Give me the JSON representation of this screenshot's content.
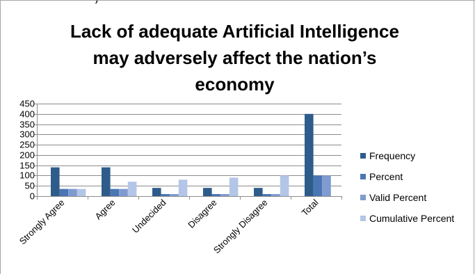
{
  "page": {
    "top_fragment": "y"
  },
  "colors": {
    "axis": "#8c8c8c",
    "gridline": "#8c8c8c",
    "border": "#a6a6a6"
  },
  "chart_data": {
    "type": "bar",
    "title_lines": [
      "Lack of adequate Artificial Intelligence",
      "may adversely affect the nation’s",
      "economy"
    ],
    "xlabel": "",
    "ylabel": "",
    "categories": [
      "Strongly Agree",
      "Agree",
      "Undecided",
      "Disagree",
      "Strongly Disagree",
      "Total"
    ],
    "ylim": [
      0,
      450
    ],
    "yticks": [
      0,
      50,
      100,
      150,
      200,
      250,
      300,
      350,
      400,
      450
    ],
    "grid": true,
    "legend_position": "right",
    "series": [
      {
        "name": "Frequency",
        "color": "#2e5c8a",
        "values": [
          140,
          140,
          40,
          40,
          40,
          400
        ]
      },
      {
        "name": "Percent",
        "color": "#4a77b4",
        "values": [
          35,
          35,
          10,
          10,
          10,
          100
        ]
      },
      {
        "name": "Valid Percent",
        "color": "#7f9bd0",
        "values": [
          35,
          35,
          10,
          10,
          10,
          100
        ]
      },
      {
        "name": "Cumulative Percent",
        "color": "#b4c6e7",
        "values": [
          35,
          70,
          80,
          90,
          100,
          null
        ]
      }
    ]
  }
}
